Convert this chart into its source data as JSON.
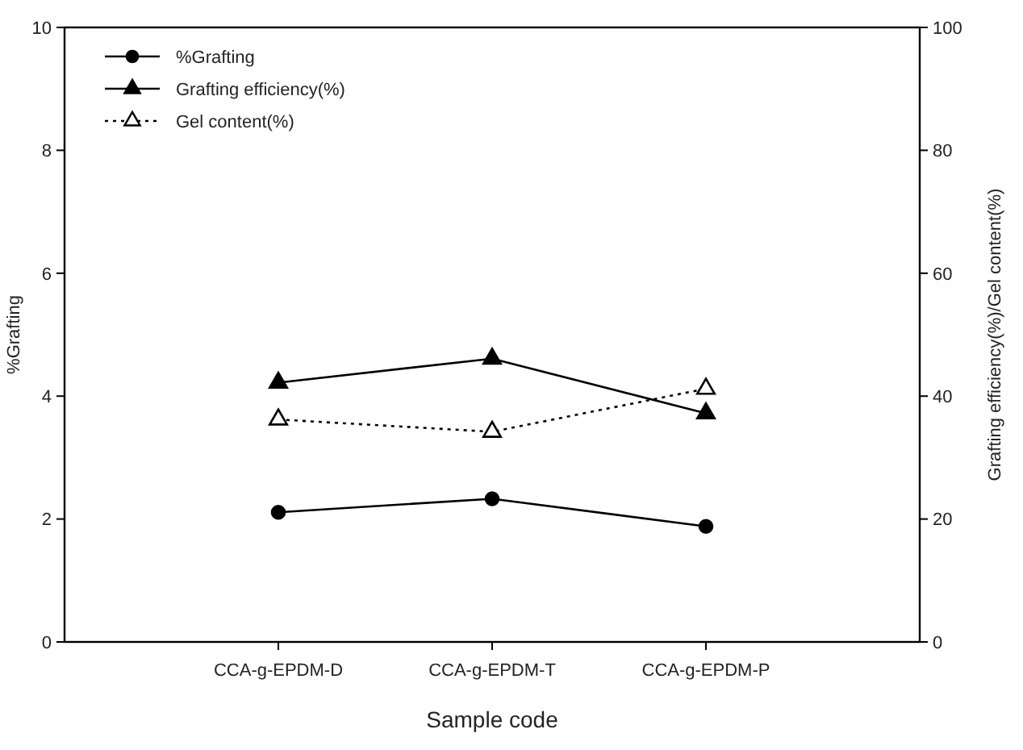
{
  "chart_data": {
    "type": "line",
    "xlabel": "Sample code",
    "ylabel": "%Grafting",
    "y2label": "Grafting efficiency(%)/Gel content(%)",
    "categories": [
      "CCA-g-EPDM-D",
      "CCA-g-EPDM-T",
      "CCA-g-EPDM-P"
    ],
    "series": [
      {
        "name": "%Grafting",
        "color": "#000000",
        "values": [
          2.11,
          2.33,
          1.88
        ],
        "marker": "circle",
        "line_style": "solid"
      },
      {
        "name": "Grafting efficiency(%)",
        "color": "#000000",
        "values": [
          42.2,
          46.1,
          37.2
        ],
        "axis": "y2",
        "marker": "triangle",
        "line_style": "solid"
      },
      {
        "name": "Gel content(%)",
        "color": "#000000",
        "values": [
          36.2,
          34.2,
          41.2
        ],
        "axis": "y2",
        "marker": "triangle",
        "line_style": "dotted"
      }
    ],
    "ylim": [
      0,
      10
    ],
    "yticks": [
      0,
      2,
      4,
      6,
      8,
      10
    ],
    "y2lim": [
      0,
      100
    ],
    "y2ticks": [
      0,
      20,
      40,
      60,
      80,
      100
    ],
    "grid": false,
    "legend": "top left"
  }
}
